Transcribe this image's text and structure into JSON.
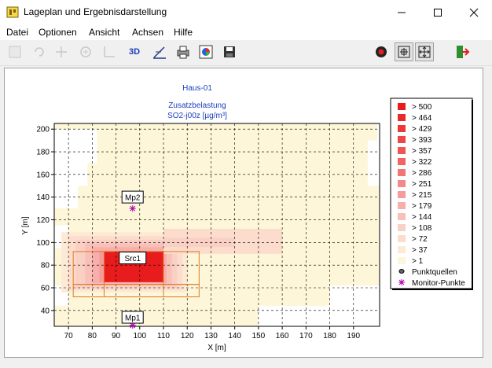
{
  "window": {
    "title": "Lageplan und Ergebnisdarstellung",
    "controls": {
      "minimize": "minimize-icon",
      "maximize": "maximize-icon",
      "close": "close-icon"
    }
  },
  "menu": [
    "Datei",
    "Optionen",
    "Ansicht",
    "Achsen",
    "Hilfe"
  ],
  "toolbar": {
    "label_3d": "3D",
    "icons": [
      "select-icon",
      "rotate-icon",
      "move-icon",
      "zoom-in-icon",
      "axis-icon",
      "3d-icon",
      "settings-icon",
      "print-icon",
      "color-icon",
      "save-icon",
      "record-icon",
      "fit-icon",
      "expand-icon",
      "exit-icon"
    ]
  },
  "plot": {
    "title_line1": "Haus-01",
    "title_line2": "Zusatzbelastung",
    "title_line3": "SO2-j00z [µg/m³]",
    "xlabel": "X [m]",
    "ylabel": "Y [m]",
    "xticks": [
      "70",
      "80",
      "90",
      "100",
      "110",
      "120",
      "130",
      "140",
      "150",
      "160",
      "170",
      "180",
      "190"
    ],
    "yticks": [
      "40",
      "60",
      "80",
      "100",
      "120",
      "140",
      "160",
      "180",
      "200"
    ],
    "labels": {
      "src1": "Src1",
      "mp1": "Mp1",
      "mp2": "Mp2"
    }
  },
  "legend": {
    "items": [
      {
        "label": "> 500",
        "color": "#e81c1c"
      },
      {
        "label": "> 464",
        "color": "#ea2a2a"
      },
      {
        "label": "> 429",
        "color": "#ec3838"
      },
      {
        "label": "> 393",
        "color": "#ee4646"
      },
      {
        "label": "> 357",
        "color": "#f05555"
      },
      {
        "label": "> 322",
        "color": "#f26464"
      },
      {
        "label": "> 286",
        "color": "#f37676"
      },
      {
        "label": "> 251",
        "color": "#f58888"
      },
      {
        "label": "> 215",
        "color": "#f69a9a"
      },
      {
        "label": "> 179",
        "color": "#f8aeab"
      },
      {
        "label": "> 144",
        "color": "#f9c0b8"
      },
      {
        "label": "> 108",
        "color": "#fad0c4"
      },
      {
        "label": "> 72",
        "color": "#fcdccc"
      },
      {
        "label": "> 37",
        "color": "#fde9d4"
      },
      {
        "label": "> 1",
        "color": "#fdf6d8"
      }
    ],
    "punktquellen": "Punktquellen",
    "monitor": "Monitor-Punkte"
  },
  "chart_data": {
    "type": "heatmap",
    "xlabel": "X [m]",
    "ylabel": "Y [m]",
    "xlim": [
      64,
      201
    ],
    "ylim": [
      26,
      205
    ],
    "grid": true,
    "legend_position": "right",
    "sources": [
      {
        "name": "Src1",
        "x": 97,
        "y": 76
      }
    ],
    "monitor_points": [
      {
        "name": "Mp1",
        "x": 97,
        "y": 24
      },
      {
        "name": "Mp2",
        "x": 97,
        "y": 130
      }
    ],
    "buildings": [
      [
        72,
        63,
        125,
        92
      ],
      [
        72,
        52,
        125,
        63
      ]
    ]
  }
}
